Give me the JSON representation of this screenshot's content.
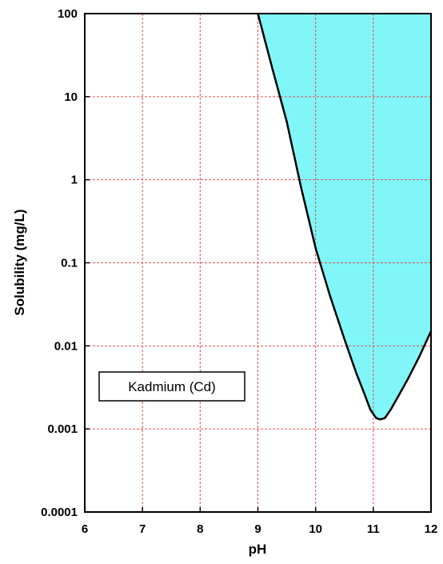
{
  "chart_data": {
    "type": "area",
    "title": "",
    "xlabel": "pH",
    "ylabel": "Solubility (mg/L)",
    "xlim": [
      6,
      12
    ],
    "ylim": [
      0.0001,
      100
    ],
    "yscale": "log",
    "grid": true,
    "x_ticks": [
      6,
      7,
      8,
      9,
      10,
      11,
      12
    ],
    "x_tick_labels": [
      "6",
      "7",
      "8",
      "9",
      "10",
      "11",
      "12"
    ],
    "y_ticks": [
      0.0001,
      0.001,
      0.01,
      0.1,
      1,
      10,
      100
    ],
    "y_tick_labels": [
      "0.0001",
      "0.001",
      "0.01",
      "0.1",
      "1",
      "10",
      "100"
    ],
    "annotation": "Kadmium (Cd)",
    "colors": {
      "fill": "#80f6f8",
      "curve": "#000000",
      "grid": "#e05050",
      "frame": "#000000"
    },
    "series": [
      {
        "x": [
          9.0,
          9.25,
          9.5,
          9.75,
          10.0,
          10.25,
          10.5,
          10.7,
          10.85,
          10.95,
          11.05,
          11.12,
          11.2,
          11.3,
          11.45,
          11.6,
          11.8,
          12.0
        ],
        "y": [
          100,
          22,
          5,
          0.8,
          0.15,
          0.04,
          0.012,
          0.0048,
          0.0026,
          0.0017,
          0.00135,
          0.0013,
          0.00135,
          0.0017,
          0.0026,
          0.004,
          0.0075,
          0.015
        ]
      }
    ]
  }
}
